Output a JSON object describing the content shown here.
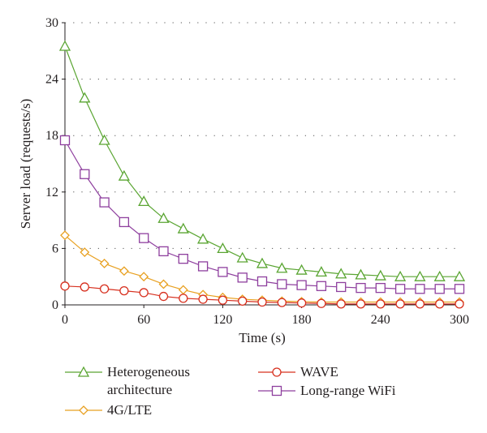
{
  "chart_data": {
    "type": "line",
    "xlabel": "Time (s)",
    "ylabel": "Server load (requests/s)",
    "xlim": [
      0,
      300
    ],
    "ylim": [
      0,
      30
    ],
    "xticks": [
      0,
      60,
      120,
      180,
      240,
      300
    ],
    "yticks": [
      0,
      6,
      12,
      18,
      24,
      30
    ],
    "grid": "horizontal dotted",
    "legend_position": "bottom",
    "x": [
      0,
      15,
      30,
      45,
      60,
      75,
      90,
      105,
      120,
      135,
      150,
      165,
      180,
      195,
      210,
      225,
      240,
      255,
      270,
      285,
      300
    ],
    "series": [
      {
        "name": "Heterogeneous architecture",
        "name_lines": [
          "Heterogeneous",
          "architecture"
        ],
        "marker": "triangle",
        "color": "#5aa532",
        "values": [
          27.5,
          22.0,
          17.5,
          13.7,
          11.0,
          9.2,
          8.1,
          7.0,
          6.0,
          5.0,
          4.4,
          3.9,
          3.7,
          3.5,
          3.3,
          3.2,
          3.1,
          3.0,
          3.0,
          3.0,
          3.0
        ]
      },
      {
        "name": "4G/LTE",
        "name_lines": [
          "4G/LTE"
        ],
        "marker": "diamond",
        "color": "#e8a020",
        "values": [
          7.4,
          5.6,
          4.4,
          3.6,
          3.0,
          2.2,
          1.6,
          1.1,
          0.8,
          0.6,
          0.5,
          0.4,
          0.35,
          0.3,
          0.3,
          0.3,
          0.3,
          0.3,
          0.3,
          0.3,
          0.3
        ]
      },
      {
        "name": "WAVE",
        "name_lines": [
          "WAVE"
        ],
        "marker": "circle",
        "color": "#d7301f",
        "values": [
          2.0,
          1.9,
          1.7,
          1.5,
          1.3,
          0.9,
          0.7,
          0.6,
          0.5,
          0.4,
          0.3,
          0.25,
          0.2,
          0.15,
          0.1,
          0.1,
          0.1,
          0.1,
          0.1,
          0.1,
          0.1
        ]
      },
      {
        "name": "Long-range WiFi",
        "name_lines": [
          "Long-range WiFi"
        ],
        "marker": "square",
        "color": "#8e3f9e",
        "values": [
          17.5,
          13.9,
          10.9,
          8.8,
          7.1,
          5.7,
          4.9,
          4.1,
          3.5,
          2.9,
          2.5,
          2.2,
          2.1,
          2.0,
          1.9,
          1.8,
          1.8,
          1.7,
          1.7,
          1.7,
          1.7
        ]
      }
    ]
  }
}
